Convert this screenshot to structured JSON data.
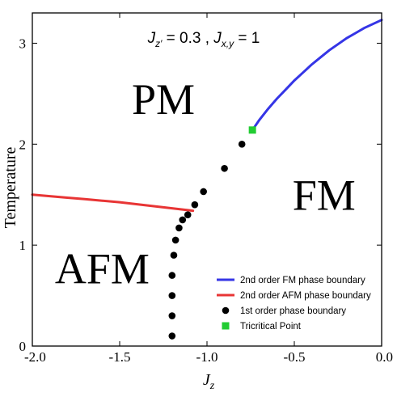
{
  "chart_data": {
    "type": "line",
    "title": "",
    "parameter_annotation": {
      "jzp_symbol": "J",
      "jzp_sub": "z′",
      "jzp_value": " = 0.3 , ",
      "jxy_symbol": "J",
      "jxy_sub": "x,y",
      "jxy_value": " = 1"
    },
    "xlabel": {
      "symbol": "J",
      "sub": "z"
    },
    "ylabel": "Temperature",
    "xlim": [
      -2.0,
      0.0
    ],
    "ylim": [
      0,
      3.3
    ],
    "x_ticks": [
      {
        "value": -2.0,
        "label": "-2.0"
      },
      {
        "value": -1.5,
        "label": "-1.5"
      },
      {
        "value": -1.0,
        "label": "-1.0"
      },
      {
        "value": -0.5,
        "label": "-0.5"
      },
      {
        "value": 0.0,
        "label": "0.0"
      }
    ],
    "y_ticks": [
      {
        "value": 0,
        "label": "0"
      },
      {
        "value": 1,
        "label": "1"
      },
      {
        "value": 2,
        "label": "2"
      },
      {
        "value": 3,
        "label": "3"
      }
    ],
    "grid": false,
    "legend_position": "lower-right",
    "region_labels": [
      {
        "text": "PM",
        "x": -1.25,
        "y": 2.3
      },
      {
        "text": "FM",
        "x": -0.33,
        "y": 1.35
      },
      {
        "text": "AFM",
        "x": -1.6,
        "y": 0.62
      }
    ],
    "series": [
      {
        "name": "2nd order FM phase boundary",
        "kind": "line",
        "color": "#3535e6",
        "x": [
          -0.74,
          -0.7,
          -0.65,
          -0.6,
          -0.55,
          -0.5,
          -0.45,
          -0.4,
          -0.35,
          -0.3,
          -0.25,
          -0.2,
          -0.15,
          -0.1,
          -0.05,
          0.0
        ],
        "y": [
          2.14,
          2.24,
          2.35,
          2.45,
          2.54,
          2.63,
          2.71,
          2.79,
          2.86,
          2.93,
          2.99,
          3.05,
          3.1,
          3.15,
          3.19,
          3.23
        ]
      },
      {
        "name": "2nd order AFM phase boundary",
        "kind": "line",
        "color": "#e83535",
        "x": [
          -2.0,
          -1.9,
          -1.8,
          -1.7,
          -1.6,
          -1.5,
          -1.4,
          -1.3,
          -1.2,
          -1.1,
          -1.08
        ],
        "y": [
          1.5,
          1.485,
          1.47,
          1.455,
          1.44,
          1.425,
          1.405,
          1.385,
          1.365,
          1.345,
          1.34
        ]
      },
      {
        "name": "1st order phase boundary",
        "kind": "scatter",
        "color": "#000000",
        "x": [
          -1.2,
          -1.2,
          -1.2,
          -1.2,
          -1.19,
          -1.18,
          -1.16,
          -1.14,
          -1.11,
          -1.07,
          -1.02,
          -0.9,
          -0.8
        ],
        "y": [
          0.1,
          0.3,
          0.5,
          0.7,
          0.9,
          1.05,
          1.17,
          1.25,
          1.3,
          1.4,
          1.53,
          1.76,
          2.0
        ]
      },
      {
        "name": "Tricritical Point",
        "kind": "marker",
        "color": "#22cc33",
        "x": [
          -0.74
        ],
        "y": [
          2.14
        ]
      }
    ]
  }
}
